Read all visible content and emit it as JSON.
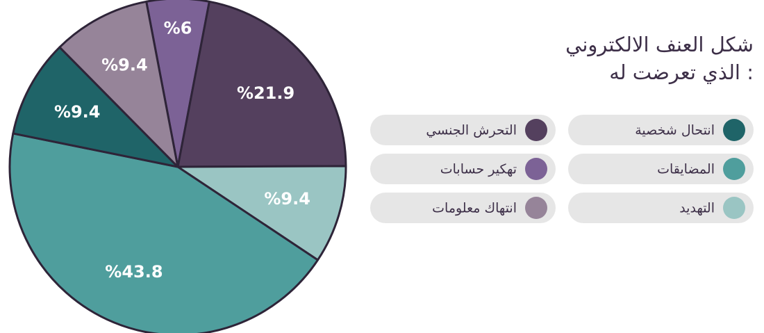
{
  "chart_data": {
    "type": "pie",
    "title": [
      "شكل العنف الالكتروني",
      "الذي تعرضت له :"
    ],
    "categories": [
      "تهكير حسابات",
      "التحرش الجنسي",
      "التهديد",
      "المضايقات",
      "انتحال شخصية",
      "انتهاك معلومات"
    ],
    "values": [
      6,
      21.9,
      9.4,
      43.8,
      9.4,
      9.4
    ],
    "value_labels": [
      "%6",
      "%21.9",
      "%9.4",
      "%43.8",
      "%9.4",
      "%9.4"
    ],
    "colors": [
      "#7c6296",
      "#54405e",
      "#9ac5c3",
      "#4f9e9d",
      "#1f6468",
      "#968499"
    ],
    "legend": "right"
  }
}
